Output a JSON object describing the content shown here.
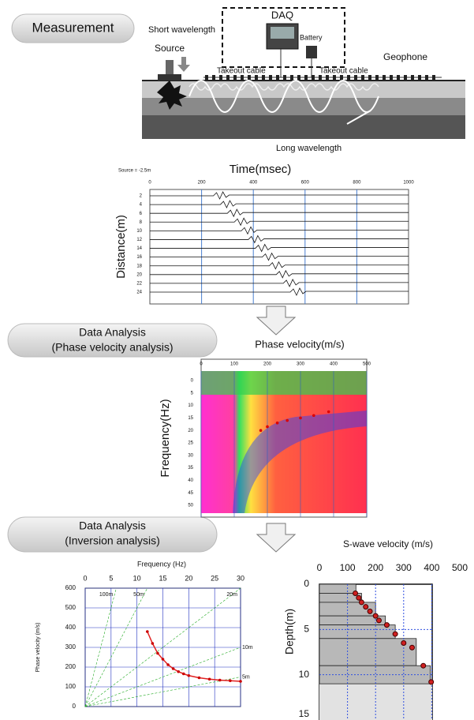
{
  "steps": [
    {
      "lines": [
        "Measurement"
      ]
    },
    {
      "lines": [
        "Data Analysis",
        "(Phase velocity analysis)"
      ]
    },
    {
      "lines": [
        "Data Analysis",
        "(Inversion analysis)"
      ]
    }
  ],
  "setup": {
    "daq": "DAQ",
    "short": "Short wavelength",
    "source": "Source",
    "battery": "Battery",
    "cable_left": "Takeout cable",
    "cable_right": "Takeout cable",
    "geophone": "Geophone",
    "long": "Long wavelength"
  },
  "seismogram": {
    "title": "Time(msec)",
    "ylabel": "Distance(m)",
    "source_note": "Source = -2.5m",
    "xticks": [
      0,
      200,
      400,
      600,
      800,
      1000
    ],
    "yticks": [
      2,
      4,
      6,
      8,
      10,
      12,
      14,
      16,
      18,
      20,
      22,
      24
    ]
  },
  "phase_velocity": {
    "title": "Phase velocity(m/s)",
    "ylabel": "Frequency(Hz)",
    "xticks": [
      0,
      100,
      200,
      300,
      400,
      500
    ],
    "yticks": [
      0,
      5,
      10,
      15,
      20,
      25,
      30,
      35,
      40,
      45,
      50
    ],
    "picks": [
      [
        180,
        20
      ],
      [
        200,
        18.5
      ],
      [
        230,
        17
      ],
      [
        260,
        16
      ],
      [
        300,
        15
      ],
      [
        340,
        14
      ],
      [
        385,
        12.5
      ]
    ]
  },
  "dispersion_curve": {
    "xlabel": "Frequency (Hz)",
    "ylabel": "Phase velocity (m/s)",
    "xticks": [
      0,
      5,
      10,
      15,
      20,
      25,
      30
    ],
    "yticks": [
      0,
      100,
      200,
      300,
      400,
      500,
      600
    ],
    "wavelengths": [
      {
        "value": 100,
        "label": "100m"
      },
      {
        "value": 50,
        "label": "50m"
      },
      {
        "value": 20,
        "label": "20m"
      },
      {
        "value": 10,
        "label": "10m"
      },
      {
        "value": 5,
        "label": "5m"
      }
    ],
    "points": [
      [
        12,
        380
      ],
      [
        13,
        320
      ],
      [
        14,
        270
      ],
      [
        15,
        240
      ],
      [
        16,
        212
      ],
      [
        17,
        192
      ],
      [
        18,
        177
      ],
      [
        19,
        166
      ],
      [
        20,
        157
      ],
      [
        22,
        146
      ],
      [
        24,
        139
      ],
      [
        26,
        134
      ],
      [
        28,
        131
      ],
      [
        30,
        128
      ]
    ]
  },
  "vs_profile": {
    "title": "S-wave velocity (m/s)",
    "ylabel": "Depth(m)",
    "xticks": [
      0,
      100,
      200,
      300,
      400,
      500
    ],
    "yticks": [
      0,
      5,
      10,
      15
    ],
    "layers": [
      [
        0,
        1,
        130
      ],
      [
        1,
        2,
        150
      ],
      [
        2,
        3.5,
        200
      ],
      [
        3.5,
        4.5,
        235
      ],
      [
        4.5,
        6,
        270
      ],
      [
        6,
        9,
        345
      ],
      [
        9,
        11,
        395
      ]
    ],
    "points": [
      [
        128,
        1
      ],
      [
        140,
        1.5
      ],
      [
        150,
        2
      ],
      [
        165,
        2.5
      ],
      [
        180,
        3
      ],
      [
        200,
        3.5
      ],
      [
        212,
        4
      ],
      [
        240,
        4.5
      ],
      [
        270,
        5.5
      ],
      [
        300,
        6.5
      ],
      [
        330,
        7
      ],
      [
        370,
        9
      ],
      [
        398,
        10.8
      ]
    ]
  }
}
